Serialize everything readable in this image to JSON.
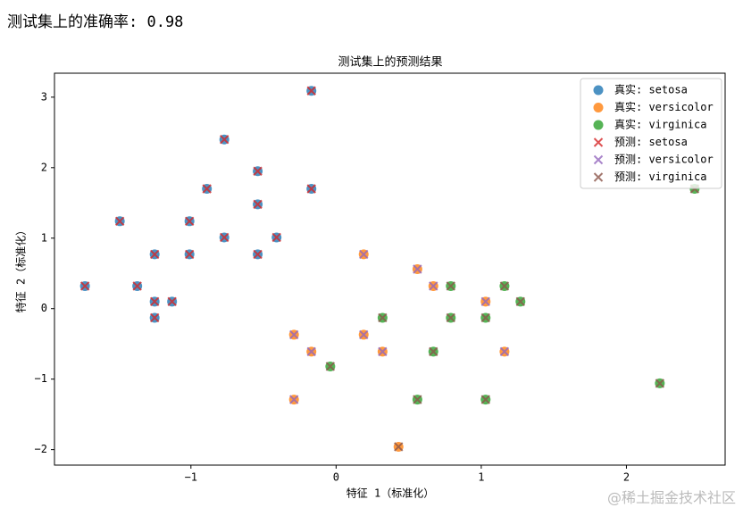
{
  "output_text": "测试集上的准确率: 0.98",
  "watermark": "@稀土掘金技术社区",
  "chart_data": {
    "type": "scatter",
    "title": "测试集上的预测结果",
    "xlabel": "特征 1（标准化）",
    "ylabel": "特征 2（标准化）",
    "xlim": [
      -1.94,
      2.68
    ],
    "ylim": [
      -2.22,
      3.34
    ],
    "xticks": [
      {
        "value": -1,
        "label": "−1"
      },
      0,
      1,
      2
    ],
    "yticks": [
      {
        "value": -2,
        "label": "−2"
      },
      {
        "value": -1,
        "label": "−1"
      },
      0,
      1,
      2,
      3
    ],
    "legend": "upper right",
    "series": [
      {
        "name": "真实: setosa",
        "color": "#1f77b4",
        "marker": "o",
        "x": [
          -0.17,
          -0.77,
          -0.54,
          -0.89,
          -0.17,
          -0.54,
          -1.49,
          -1.01,
          -0.77,
          -0.41,
          -1.25,
          -1.01,
          -0.54,
          -1.73,
          -1.37,
          -1.25,
          -1.13,
          -1.25
        ],
        "y": [
          3.09,
          2.4,
          1.95,
          1.7,
          1.7,
          1.48,
          1.24,
          1.24,
          1.01,
          1.01,
          0.77,
          0.77,
          0.77,
          0.32,
          0.32,
          0.1,
          0.1,
          -0.13
        ]
      },
      {
        "name": "真实: versicolor",
        "color": "#ff7f0e",
        "marker": "o",
        "x": [
          0.19,
          0.56,
          0.67,
          1.03,
          -0.29,
          0.19,
          -0.17,
          0.32,
          1.16,
          -0.29,
          0.43
        ],
        "y": [
          0.77,
          0.56,
          0.32,
          0.1,
          -0.37,
          -0.37,
          -0.61,
          -0.61,
          -0.61,
          -1.29,
          -1.96
        ]
      },
      {
        "name": "真实: virginica",
        "color": "#2ca02c",
        "marker": "o",
        "x": [
          2.47,
          0.79,
          1.16,
          1.27,
          0.32,
          0.79,
          1.03,
          -0.04,
          0.67,
          0.56,
          1.03,
          2.23
        ],
        "y": [
          1.7,
          0.32,
          0.32,
          0.1,
          -0.13,
          -0.13,
          -0.13,
          -0.82,
          -0.61,
          -1.29,
          -1.29,
          -1.06
        ]
      },
      {
        "name": "预测: setosa",
        "color": "#d62728",
        "marker": "x",
        "x": [
          -0.17,
          -0.77,
          -0.54,
          -0.89,
          -0.17,
          -0.54,
          -1.49,
          -1.01,
          -0.77,
          -0.41,
          -1.25,
          -1.01,
          -0.54,
          -1.73,
          -1.37,
          -1.25,
          -1.13,
          -1.25
        ],
        "y": [
          3.09,
          2.4,
          1.95,
          1.7,
          1.7,
          1.48,
          1.24,
          1.24,
          1.01,
          1.01,
          0.77,
          0.77,
          0.77,
          0.32,
          0.32,
          0.1,
          0.1,
          -0.13
        ]
      },
      {
        "name": "预测: versicolor",
        "color": "#9467bd",
        "marker": "x",
        "x": [
          0.19,
          0.56,
          0.67,
          1.03,
          -0.29,
          0.19,
          -0.17,
          0.32,
          1.16,
          -0.29
        ],
        "y": [
          0.77,
          0.56,
          0.32,
          0.1,
          -0.37,
          -0.37,
          -0.61,
          -0.61,
          -0.61,
          -1.29
        ]
      },
      {
        "name": "预测: virginica",
        "color": "#8c564b",
        "marker": "x",
        "x": [
          2.47,
          0.79,
          1.16,
          1.27,
          0.32,
          0.79,
          1.03,
          -0.04,
          0.67,
          0.56,
          1.03,
          2.23,
          0.43
        ],
        "y": [
          1.7,
          0.32,
          0.32,
          0.1,
          -0.13,
          -0.13,
          -0.13,
          -0.82,
          -0.61,
          -1.29,
          -1.29,
          -1.06,
          -1.96
        ]
      }
    ]
  }
}
